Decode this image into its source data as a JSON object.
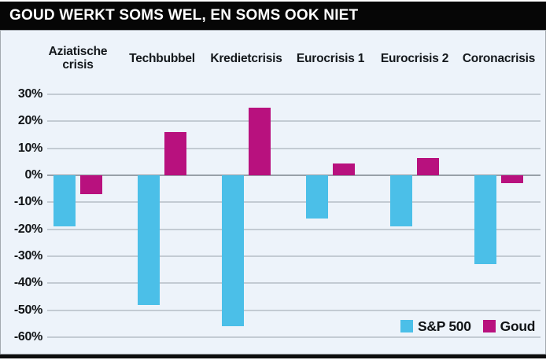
{
  "title": "GOUD WERKT SOMS WEL, EN SOMS OOK NIET",
  "colors": {
    "sp500": "#4bbfe8",
    "goud": "#b8117e",
    "titlebar_bg": "#060606",
    "panel_bg": "#edf3fa",
    "gridline": "#c3cbd3",
    "zero_line": "#98a0a8",
    "text": "#14181c"
  },
  "legend": [
    {
      "name": "S&P 500",
      "color_key": "sp500"
    },
    {
      "name": "Goud",
      "color_key": "goud"
    }
  ],
  "chart_data": {
    "type": "bar",
    "title": "GOUD WERKT SOMS WEL, EN SOMS OOK NIET",
    "categories": [
      "Aziatische crisis",
      "Techbubbel",
      "Kredietcrisis",
      "Eurocrisis 1",
      "Eurocrisis 2",
      "Coronacrisis"
    ],
    "series": [
      {
        "name": "S&P 500",
        "values": [
          -19,
          -48,
          -56,
          -16,
          -19,
          -33
        ]
      },
      {
        "name": "Goud",
        "values": [
          -7,
          16,
          25,
          4.5,
          6.5,
          -3
        ]
      }
    ],
    "xlabel": "",
    "ylabel": "",
    "ylim": [
      -60,
      30
    ],
    "ytick_step": 10,
    "ytick_labels": [
      "30%",
      "20%",
      "10%",
      "0%",
      "-10%",
      "-20%",
      "-30%",
      "-40%",
      "-50%",
      "-60%"
    ],
    "grid": true,
    "legend_position": "bottom-right"
  }
}
